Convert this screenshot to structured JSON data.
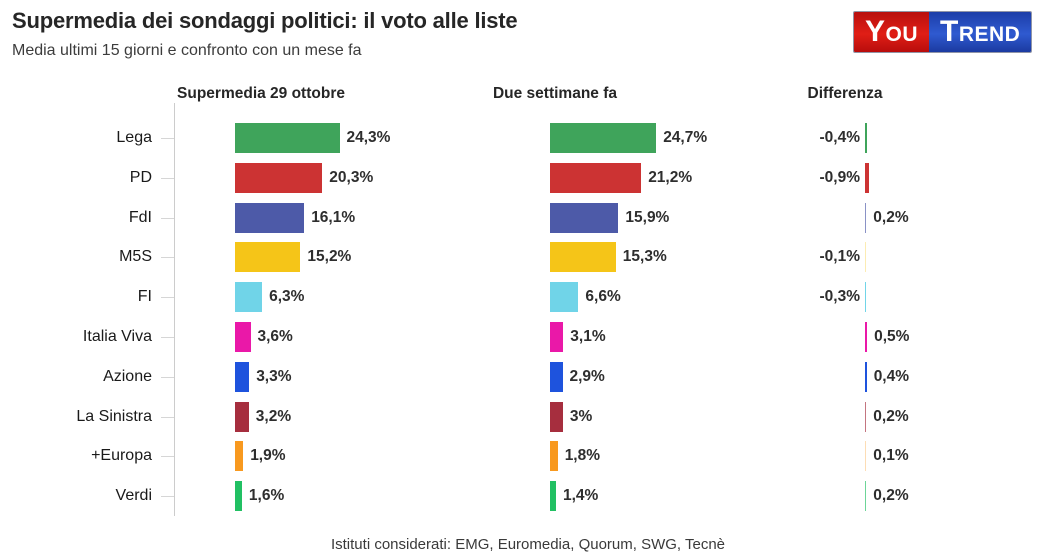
{
  "header": {
    "title": "Supermedia dei sondaggi politici: il voto alle liste",
    "subtitle": "Media ultimi 15 giorni e confronto con un mese fa",
    "logo": {
      "part1": "You",
      "part2": "Trend",
      "part1_bg": "#c61311",
      "part2_bg": "#2449b8",
      "text_color": "#ffffff"
    }
  },
  "footer": {
    "text": "Istituti considerati: EMG, Euromedia, Quorum, SWG, Tecnè"
  },
  "colors": {
    "axis": "#cccccc",
    "title_text": "#262626",
    "value_text": "#2e2e2e"
  },
  "chart_data": {
    "type": "bar",
    "orientation": "horizontal",
    "unit": "%",
    "decimal_separator": ",",
    "legend_position": "none",
    "grid": false,
    "columns": [
      "Supermedia 29 ottobre",
      "Due settimane fa",
      "Differenza"
    ],
    "categories": [
      "Lega",
      "PD",
      "FdI",
      "M5S",
      "FI",
      "Italia Viva",
      "Azione",
      "La Sinistra",
      "+Europa",
      "Verdi"
    ],
    "parties": [
      {
        "name": "Lega",
        "color": "#3fa45b",
        "now": 24.3,
        "now_label": "24,3%",
        "prev": 24.7,
        "prev_label": "24,7%",
        "diff": -0.4,
        "diff_label": "-0,4%"
      },
      {
        "name": "PD",
        "color": "#cc3333",
        "now": 20.3,
        "now_label": "20,3%",
        "prev": 21.2,
        "prev_label": "21,2%",
        "diff": -0.9,
        "diff_label": "-0,9%"
      },
      {
        "name": "FdI",
        "color": "#4d5aa8",
        "now": 16.1,
        "now_label": "16,1%",
        "prev": 15.9,
        "prev_label": "15,9%",
        "diff": 0.2,
        "diff_label": "0,2%"
      },
      {
        "name": "M5S",
        "color": "#f5c518",
        "now": 15.2,
        "now_label": "15,2%",
        "prev": 15.3,
        "prev_label": "15,3%",
        "diff": -0.1,
        "diff_label": "-0,1%"
      },
      {
        "name": "FI",
        "color": "#70d4e8",
        "now": 6.3,
        "now_label": "6,3%",
        "prev": 6.6,
        "prev_label": "6,6%",
        "diff": -0.3,
        "diff_label": "-0,3%"
      },
      {
        "name": "Italia Viva",
        "color": "#ea18a8",
        "now": 3.6,
        "now_label": "3,6%",
        "prev": 3.1,
        "prev_label": "3,1%",
        "diff": 0.5,
        "diff_label": "0,5%"
      },
      {
        "name": "Azione",
        "color": "#1e53dd",
        "now": 3.3,
        "now_label": "3,3%",
        "prev": 2.9,
        "prev_label": "2,9%",
        "diff": 0.4,
        "diff_label": "0,4%"
      },
      {
        "name": "La Sinistra",
        "color": "#a62e3e",
        "now": 3.2,
        "now_label": "3,2%",
        "prev": 3.0,
        "prev_label": "3%",
        "diff": 0.2,
        "diff_label": "0,2%"
      },
      {
        "name": "+Europa",
        "color": "#f8991f",
        "now": 1.9,
        "now_label": "1,9%",
        "prev": 1.8,
        "prev_label": "1,8%",
        "diff": 0.1,
        "diff_label": "0,1%"
      },
      {
        "name": "Verdi",
        "color": "#21c063",
        "now": 1.6,
        "now_label": "1,6%",
        "prev": 1.4,
        "prev_label": "1,4%",
        "diff": 0.2,
        "diff_label": "0,2%"
      }
    ]
  }
}
